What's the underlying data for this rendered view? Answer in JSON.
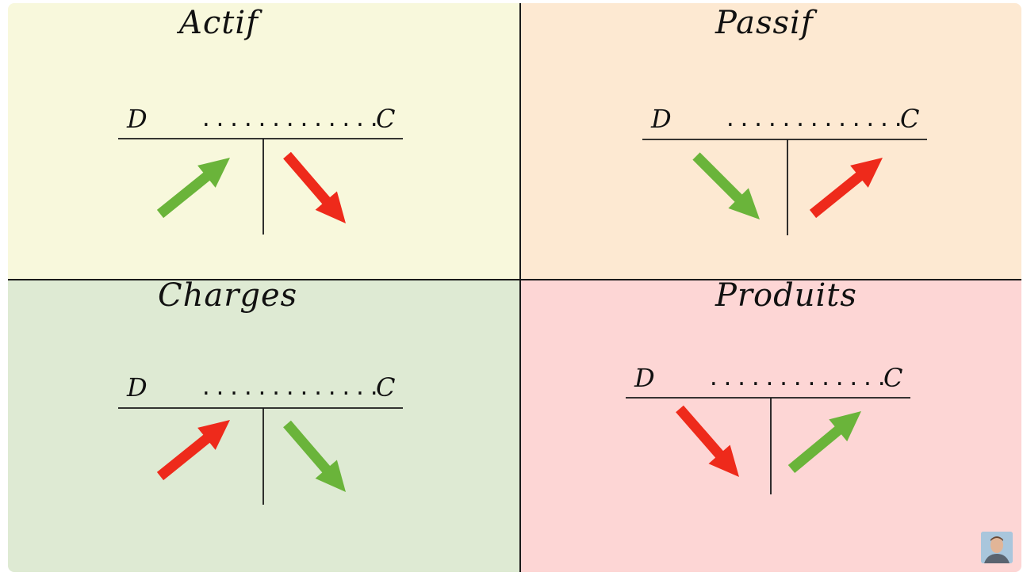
{
  "quadrants": {
    "actif": {
      "title": "Actif",
      "debit": "D",
      "credit": "C",
      "account": "............."
    },
    "passif": {
      "title": "Passif",
      "debit": "D",
      "credit": "C",
      "account": "............."
    },
    "charges": {
      "title": "Charges",
      "debit": "D",
      "credit": "C",
      "account": "............."
    },
    "produits": {
      "title": "Produits",
      "debit": "D",
      "credit": "C",
      "account": "............."
    }
  },
  "colors": {
    "actif_bg": "#f8f8dc",
    "passif_bg": "#fde9d2",
    "charges_bg": "#deead3",
    "produits_bg": "#fdd6d5",
    "increase_arrow": "#6ab43a",
    "decrease_arrow": "#ee2a1b"
  },
  "icons": {
    "arrow_up": "arrow-up-right-icon",
    "arrow_down": "arrow-down-right-icon",
    "presenter": "presenter-avatar-icon"
  }
}
